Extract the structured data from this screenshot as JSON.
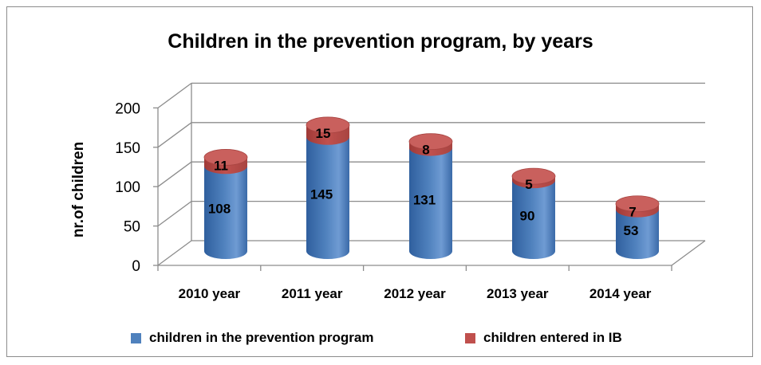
{
  "chart_data": {
    "type": "bar",
    "style": "3d-cylinder-stacked",
    "title": "Children in the prevention program,  by years",
    "xlabel": "",
    "ylabel": "nr.of children",
    "ylim": [
      0,
      200
    ],
    "yticks": [
      0,
      50,
      100,
      150,
      200
    ],
    "grid": true,
    "legend_position": "bottom",
    "categories": [
      "2010 year",
      "2011 year",
      "2012 year",
      "2013 year",
      "2014 year"
    ],
    "series": [
      {
        "name": "children in the prevention program",
        "color": "#4f81bd",
        "values": [
          108,
          145,
          131,
          90,
          53
        ]
      },
      {
        "name": "children entered in IB",
        "color": "#c0504d",
        "values": [
          11,
          15,
          8,
          5,
          7
        ]
      }
    ]
  }
}
